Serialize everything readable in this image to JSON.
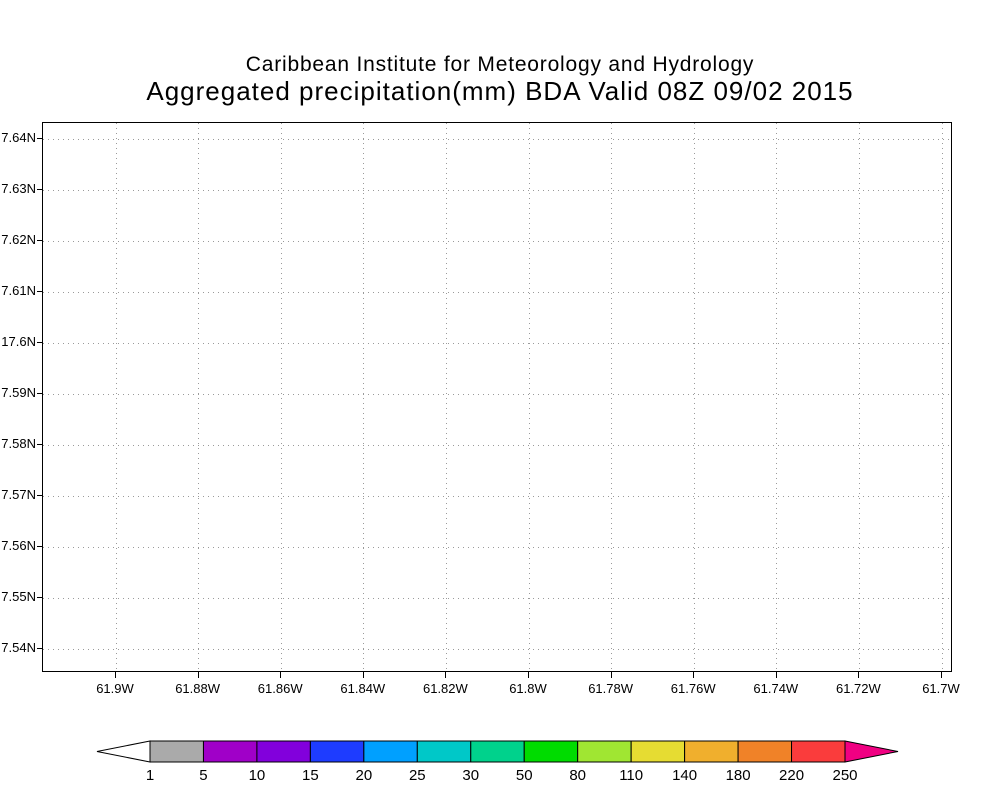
{
  "title": {
    "line1": "Caribbean Institute for Meteorology and Hydrology",
    "line2": "Aggregated precipitation(mm) BDA Valid 08Z 09/02 2015"
  },
  "chart_data": {
    "type": "heatmap",
    "subtype": "gridded-precipitation-map",
    "title": "Aggregated precipitation(mm) BDA Valid 08Z 09/02 2015",
    "institution": "Caribbean Institute for Meteorology and Hydrology",
    "grid": true,
    "background": "#ffffff",
    "x_axis": {
      "tick_labels": [
        "61.9W",
        "61.88W",
        "61.86W",
        "61.84W",
        "61.82W",
        "61.8W",
        "61.78W",
        "61.76W",
        "61.74W",
        "61.72W",
        "61.7W"
      ]
    },
    "y_axis": {
      "tick_labels": [
        "7.64N",
        "7.63N",
        "7.62N",
        "7.61N",
        "17.6N",
        "7.59N",
        "7.58N",
        "7.57N",
        "7.56N",
        "7.55N",
        "7.54N"
      ]
    },
    "values": [],
    "colorbar": {
      "boundary_labels": [
        "1",
        "5",
        "10",
        "15",
        "20",
        "25",
        "30",
        "50",
        "80",
        "110",
        "140",
        "180",
        "220",
        "250"
      ],
      "segment_colors": [
        "#aaaaaa",
        "#a000c8",
        "#8200dc",
        "#1e3cff",
        "#00a0ff",
        "#00c8c8",
        "#00d28c",
        "#00dc00",
        "#a0e632",
        "#e6dc32",
        "#f0af2d",
        "#f08228",
        "#fa3c3c"
      ],
      "below_min_color": "#ffffff",
      "above_max_color": "#f00082",
      "outline_color": "#000000"
    }
  }
}
